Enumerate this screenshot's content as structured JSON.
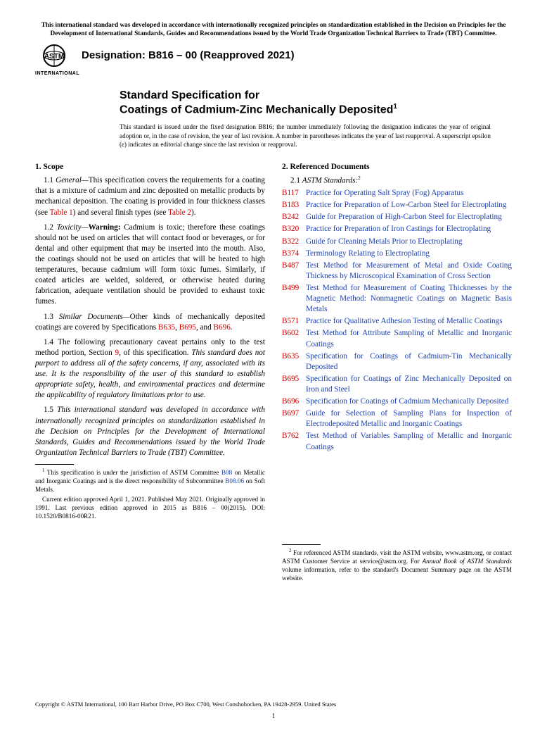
{
  "top_notice": "This international standard was developed in accordance with internationally recognized principles on standardization established in the Decision on Principles for the Development of International Standards, Guides and Recommendations issued by the World Trade Organization Technical Barriers to Trade (TBT) Committee.",
  "logo_label": "INTERNATIONAL",
  "designation": "Designation: B816 – 00 (Reapproved 2021)",
  "title_kicker": "Standard Specification for",
  "title_main": "Coatings of Cadmium-Zinc Mechanically Deposited",
  "title_sup": "1",
  "issuance": "This standard is issued under the fixed designation B816; the number immediately following the designation indicates the year of original adoption or, in the case of revision, the year of last revision. A number in parentheses indicates the year of last reapproval. A superscript epsilon (ε) indicates an editorial change since the last revision or reapproval.",
  "scope_head": "1. Scope",
  "p11_num": "1.1 ",
  "p11_label": "General—",
  "p11_a": "This specification covers the requirements for a coating that is a mixture of cadmium and zinc deposited on metallic products by mechanical deposition. The coating is provided in four thickness classes (see ",
  "p11_ref1": "Table 1",
  "p11_b": ") and several finish types (see ",
  "p11_ref2": "Table 2",
  "p11_c": ").",
  "p12_num": "1.2 ",
  "p12_label": "Toxicity—",
  "p12_warn": "Warning:",
  "p12_body": " Cadmium is toxic; therefore these coatings should not be used on articles that will contact food or beverages, or for dental and other equipment that may be inserted into the mouth. Also, the coatings should not be used on articles that will be heated to high temperatures, because cadmium will form toxic fumes. Similarly, if coated articles are welded, soldered, or otherwise heated during fabrication, adequate ventilation should be provided to exhaust toxic fumes.",
  "p13_num": "1.3 ",
  "p13_label": "Similar Documents—",
  "p13_a": "Other kinds of mechanically deposited coatings are covered by Specifications ",
  "p13_r1": "B635",
  "p13_s1": ", ",
  "p13_r2": "B695",
  "p13_s2": ", and ",
  "p13_r3": "B696",
  "p13_end": ".",
  "p14_num": "1.4 ",
  "p14_a": "The following precautionary caveat pertains only to the test method portion, Section ",
  "p14_ref": "9",
  "p14_b": ", of this specification. ",
  "p14_italic": "This standard does not purport to address all of the safety concerns, if any, associated with its use. It is the responsibility of the user of this standard to establish appropriate safety, health, and environmental practices and determine the applicability of regulatory limitations prior to use.",
  "p15_num": "1.5 ",
  "p15_italic": "This international standard was developed in accordance with internationally recognized principles on standardization established in the Decision on Principles for the Development of International Standards, Guides and Recommendations issued by the World Trade Organization Technical Barriers to Trade (TBT) Committee.",
  "refdocs_head": "2. Referenced Documents",
  "p21_num": "2.1 ",
  "p21_label": "ASTM Standards:",
  "p21_sup": "2",
  "refs": [
    {
      "code": "B117",
      "title": "Practice for Operating Salt Spray (Fog) Apparatus"
    },
    {
      "code": "B183",
      "title": "Practice for Preparation of Low-Carbon Steel for Electroplating"
    },
    {
      "code": "B242",
      "title": "Guide for Preparation of High-Carbon Steel for Electroplating"
    },
    {
      "code": "B320",
      "title": "Practice for Preparation of Iron Castings for Electroplating"
    },
    {
      "code": "B322",
      "title": "Guide for Cleaning Metals Prior to Electroplating"
    },
    {
      "code": "B374",
      "title": "Terminology Relating to Electroplating"
    },
    {
      "code": "B487",
      "title": "Test Method for Measurement of Metal and Oxide Coating Thickness by Microscopical Examination of Cross Section"
    },
    {
      "code": "B499",
      "title": "Test Method for Measurement of Coating Thicknesses by the Magnetic Method: Nonmagnetic Coatings on Magnetic Basis Metals"
    },
    {
      "code": "B571",
      "title": "Practice for Qualitative Adhesion Testing of Metallic Coatings"
    },
    {
      "code": "B602",
      "title": "Test Method for Attribute Sampling of Metallic and Inorganic Coatings"
    },
    {
      "code": "B635",
      "title": "Specification for Coatings of Cadmium-Tin Mechanically Deposited"
    },
    {
      "code": "B695",
      "title": "Specification for Coatings of Zinc Mechanically Deposited on Iron and Steel"
    },
    {
      "code": "B696",
      "title": "Specification for Coatings of Cadmium Mechanically Deposited"
    },
    {
      "code": "B697",
      "title": "Guide for Selection of Sampling Plans for Inspection of Electrodeposited Metallic and Inorganic Coatings"
    },
    {
      "code": "B762",
      "title": "Test Method of Variables Sampling of Metallic and Inorganic Coatings"
    }
  ],
  "fn1_sup": "1",
  "fn1_a": " This specification is under the jurisdiction of ASTM Committee ",
  "fn1_r1": "B08",
  "fn1_b": " on Metallic and Inorganic Coatings and is the direct responsibility of Subcommittee ",
  "fn1_r2": "B08.06",
  "fn1_c": " on Soft Metals.",
  "fn1_p2": "Current edition approved April 1, 2021. Published May 2021. Originally approved in 1991. Last previous edition approved in 2015 as B816 – 00(2015). DOI: 10.1520/B0816-00R21.",
  "fn2_sup": "2",
  "fn2_a": " For referenced ASTM standards, visit the ASTM website, www.astm.org, or contact ASTM Customer Service at service@astm.org. For ",
  "fn2_i": "Annual Book of ASTM Standards",
  "fn2_b": " volume information, refer to the standard's Document Summary page on the ASTM website.",
  "copyright": "Copyright © ASTM International, 100 Barr Harbor Drive, PO Box C700, West Conshohocken, PA 19428-2959. United States",
  "pagenum": "1"
}
